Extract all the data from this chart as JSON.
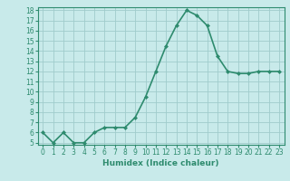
{
  "x": [
    0,
    1,
    2,
    3,
    4,
    5,
    6,
    7,
    8,
    9,
    10,
    11,
    12,
    13,
    14,
    15,
    16,
    17,
    18,
    19,
    20,
    21,
    22,
    23
  ],
  "y": [
    6.0,
    5.0,
    6.0,
    5.0,
    5.0,
    6.0,
    6.5,
    6.5,
    6.5,
    7.5,
    9.5,
    12.0,
    14.5,
    16.5,
    18.0,
    17.5,
    16.5,
    13.5,
    12.0,
    11.8,
    11.8,
    12.0,
    12.0,
    12.0
  ],
  "xlabel": "Humidex (Indice chaleur)",
  "ylim_min": 5,
  "ylim_max": 18,
  "xlim_min": -0.5,
  "xlim_max": 23.5,
  "yticks": [
    5,
    6,
    7,
    8,
    9,
    10,
    11,
    12,
    13,
    14,
    15,
    16,
    17,
    18
  ],
  "xticks": [
    0,
    1,
    2,
    3,
    4,
    5,
    6,
    7,
    8,
    9,
    10,
    11,
    12,
    13,
    14,
    15,
    16,
    17,
    18,
    19,
    20,
    21,
    22,
    23
  ],
  "line_color": "#2e8b6e",
  "bg_color": "#c8eaea",
  "grid_color": "#a0cccc",
  "marker": "D",
  "marker_size": 2,
  "line_width": 1.2,
  "tick_fontsize": 5.5,
  "xlabel_fontsize": 6.5
}
